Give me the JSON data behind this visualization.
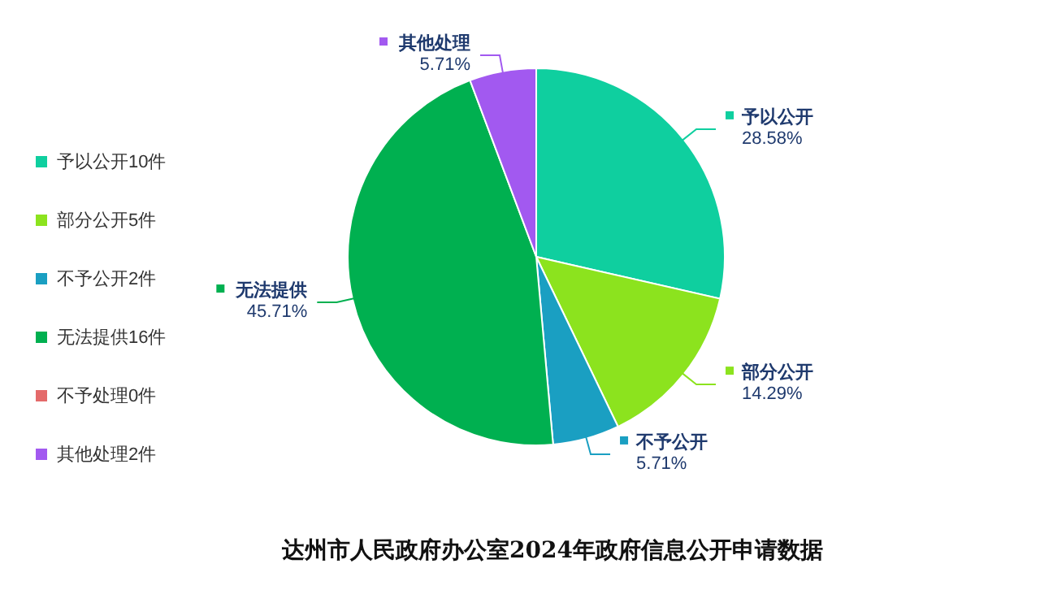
{
  "chart_data": {
    "type": "pie",
    "title": "达州市人民政府办公室2024年政府信息公开申请数据",
    "categories": [
      "予以公开10件",
      "部分公开5件",
      "不予公开2件",
      "无法提供16件",
      "不予处理0件",
      "其他处理2件"
    ],
    "values": [
      10,
      5,
      2,
      16,
      0,
      2
    ],
    "colors": [
      "#0fcf9f",
      "#8ce31e",
      "#1a9fc2",
      "#00b050",
      "#e46a6a",
      "#a259f0"
    ],
    "value_labels": [
      "予以公开\n28.58%",
      "部分公开\n14.29%",
      "不予公开\n5.71%",
      "无法提供\n45.71%",
      null,
      "其他处理\n5.71%"
    ],
    "legend": "left"
  }
}
